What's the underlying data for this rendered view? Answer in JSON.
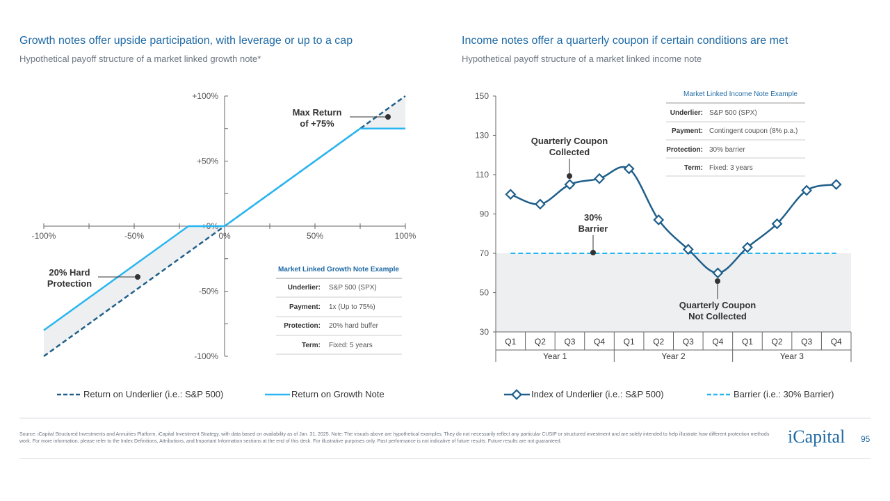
{
  "left": {
    "title": "Growth notes offer upside participation, with leverage or up to a cap",
    "subtitle": "Hypothetical payoff structure of a market linked growth note*",
    "callouts": {
      "max_return": [
        "Max Return",
        "of +75%"
      ],
      "hard_protection": [
        "20% Hard",
        "Protection"
      ]
    },
    "table": {
      "title": "Market Linked Growth Note Example",
      "rows": [
        {
          "label": "Underlier:",
          "value": "S&P 500 (SPX)"
        },
        {
          "label": "Payment:",
          "value": "1x (Up to 75%)"
        },
        {
          "label": "Protection:",
          "value": "20% hard buffer"
        },
        {
          "label": "Term:",
          "value": "Fixed: 5 years"
        }
      ]
    }
  },
  "right": {
    "title": "Income notes offer a quarterly coupon if certain conditions are met",
    "subtitle": "Hypothetical payoff structure of a market linked income note",
    "callouts": {
      "coupon_collected": [
        "Quarterly Coupon",
        "Collected"
      ],
      "barrier": [
        "30%",
        "Barrier"
      ],
      "coupon_not_collected": [
        "Quarterly Coupon",
        "Not Collected"
      ]
    },
    "table": {
      "title": "Market Linked Income Note Example",
      "rows": [
        {
          "label": "Underlier:",
          "value": "S&P 500 (SPX)"
        },
        {
          "label": "Payment:",
          "value": "Contingent coupon (8% p.a.)"
        },
        {
          "label": "Protection:",
          "value": "30% barrier"
        },
        {
          "label": "Term:",
          "value": "Fixed: 3 years"
        }
      ]
    }
  },
  "colors": {
    "navy": "#1f5f8b",
    "cyan": "#29b6f0",
    "title": "#1f6aa5",
    "shade": "#eeeff0"
  },
  "chart_data": [
    {
      "type": "line",
      "title": "Hypothetical payoff structure of a market linked growth note*",
      "xlim": [
        -100,
        100
      ],
      "ylim": [
        -100,
        100
      ],
      "x_ticks": [
        "-100%",
        "-50%",
        "0%",
        "50%",
        "100%"
      ],
      "x_tick_values": [
        -100,
        -50,
        0,
        50,
        100
      ],
      "y_ticks": [
        "+100%",
        "+50%",
        "+0%",
        "-50%",
        "-100%"
      ],
      "y_tick_values": [
        100,
        50,
        0,
        -50,
        -100
      ],
      "series": [
        {
          "name": "Return on Underlier (i.e.: S&P 500)",
          "style": "dashed",
          "x": [
            -100,
            100
          ],
          "y": [
            -100,
            100
          ]
        },
        {
          "name": "Return on Growth Note",
          "style": "solid",
          "x": [
            -100,
            -20,
            0,
            75,
            100
          ],
          "y": [
            -80,
            0,
            0,
            75,
            75
          ]
        }
      ],
      "legend": [
        "Return on Underlier (i.e.: S&P 500)",
        "Return on Growth Note"
      ]
    },
    {
      "type": "line",
      "title": "Hypothetical payoff structure of a market linked income note",
      "ylim": [
        30,
        150
      ],
      "y_ticks": [
        "150",
        "130",
        "110",
        "90",
        "70",
        "50",
        "30"
      ],
      "y_tick_values": [
        150,
        130,
        110,
        90,
        70,
        50,
        30
      ],
      "quarters": [
        "Q1",
        "Q2",
        "Q3",
        "Q4",
        "Q1",
        "Q2",
        "Q3",
        "Q4",
        "Q1",
        "Q2",
        "Q3",
        "Q4"
      ],
      "years": [
        "Year 1",
        "Year 2",
        "Year 3"
      ],
      "series": [
        {
          "name": "Index of Underlier (i.e.: S&P 500)",
          "style": "line-diamond",
          "values": [
            100,
            95,
            105,
            108,
            113,
            87,
            72,
            60,
            73,
            85,
            102,
            105
          ]
        },
        {
          "name": "Barrier (i.e.: 30% Barrier)",
          "style": "dashed",
          "values": [
            70,
            70,
            70,
            70,
            70,
            70,
            70,
            70,
            70,
            70,
            70,
            70
          ]
        }
      ],
      "legend": [
        "Index of Underlier (i.e.: S&P 500)",
        "Barrier (i.e.: 30% Barrier)"
      ]
    }
  ],
  "footer": {
    "source": "Source: iCapital Structured Investments and Annuities Platform, iCapital Investment Strategy, with data based on availability as of Jan. 31, 2025. Note: The visuals above are hypothetical examples. They do not necessarily reflect any particular CUSIP or structured investment and are solely intended to help illustrate how different protection methods work. For more information, please refer to the Index Definitions, Attributions, and Important Information sections at the end of this deck. For illustrative purposes only. Past performance is not indicative of future results. Future results are not guaranteed.",
    "logo": "iCapital",
    "page": "95"
  }
}
